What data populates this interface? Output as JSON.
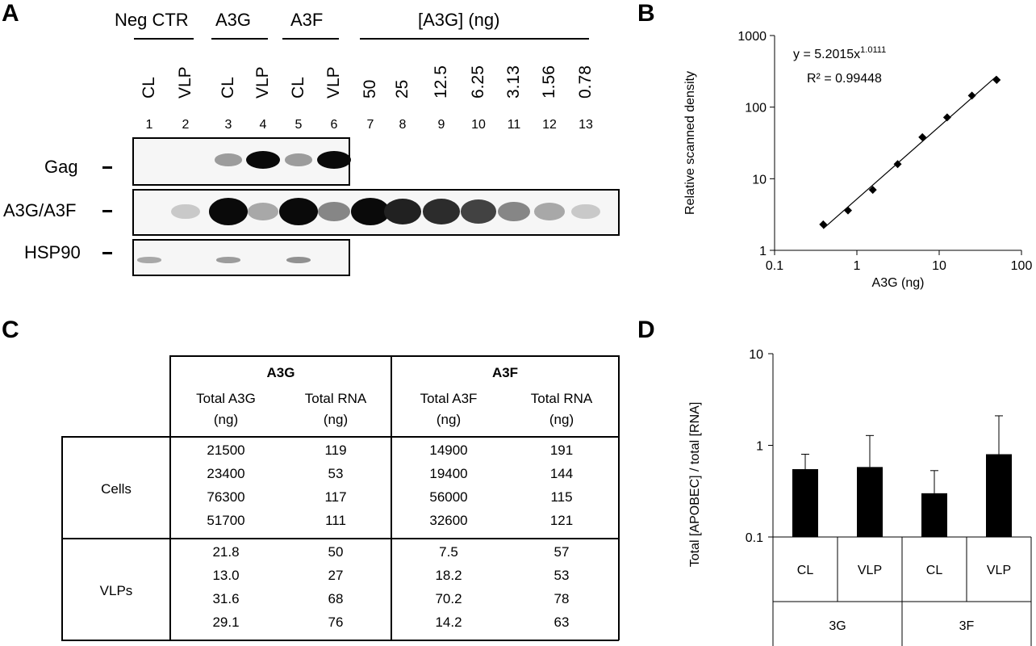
{
  "panels": {
    "a": "A",
    "b": "B",
    "c": "C",
    "d": "D"
  },
  "panel_a": {
    "groups": [
      {
        "label": "Neg CTR"
      },
      {
        "label": "A3G"
      },
      {
        "label": "A3F"
      },
      {
        "label": "[A3G] (ng)"
      }
    ],
    "lane_labels": [
      "CL",
      "VLP",
      "CL",
      "VLP",
      "CL",
      "VLP",
      "50",
      "25",
      "12.5",
      "6.25",
      "3.13",
      "1.56",
      "0.78"
    ],
    "lane_numbers": [
      "1",
      "2",
      "3",
      "4",
      "5",
      "6",
      "7",
      "8",
      "9",
      "10",
      "11",
      "12",
      "13"
    ],
    "blots": [
      {
        "label": "Gag",
        "intensity": [
          0,
          0,
          0.35,
          1.0,
          0.35,
          1.0
        ]
      },
      {
        "label": "A3G/A3F",
        "intensity": [
          0,
          0.15,
          1.0,
          0.3,
          1.0,
          0.45,
          1.0,
          0.9,
          0.85,
          0.75,
          0.45,
          0.3,
          0.15
        ]
      },
      {
        "label": "HSP90",
        "intensity": [
          0.3,
          0,
          0.35,
          0,
          0.4,
          0
        ]
      }
    ]
  },
  "chart_data": [
    {
      "type": "scatter",
      "panel": "B",
      "x": [
        0.39,
        0.78,
        1.56,
        3.13,
        6.25,
        12.5,
        25,
        50
      ],
      "y": [
        2.3,
        3.6,
        7.0,
        16,
        38,
        72,
        145,
        240
      ],
      "trendline": {
        "equation": "y = 5.2015x",
        "exponent": "1.0111",
        "r2": "R² = 0.99448",
        "a": 5.2015,
        "b": 1.0111
      },
      "xlabel": "A3G (ng)",
      "ylabel": "Relative scanned density",
      "xscale": "log",
      "yscale": "log",
      "xlim": [
        0.1,
        100
      ],
      "ylim": [
        1,
        1000
      ],
      "xticks": [
        "0.1",
        "1",
        "10",
        "100"
      ],
      "yticks": [
        "1",
        "10",
        "100",
        "1000"
      ],
      "grid": false
    },
    {
      "type": "bar",
      "panel": "D",
      "categories": [
        "CL",
        "VLP",
        "CL",
        "VLP"
      ],
      "groups": [
        "3G",
        "3F"
      ],
      "values": [
        0.55,
        0.58,
        0.3,
        0.8
      ],
      "errors_upper": [
        0.8,
        1.28,
        0.53,
        2.1
      ],
      "ylabel": "Total [APOBEC] / total [RNA]",
      "yscale": "log",
      "ylim": [
        0.1,
        10
      ],
      "yticks": [
        "0.1",
        "1",
        "10"
      ],
      "color": "#000000"
    }
  ],
  "panel_c": {
    "group_a3g": "A3G",
    "group_a3f": "A3F",
    "col_headers": [
      [
        "Total A3G",
        "(ng)"
      ],
      [
        "Total RNA",
        "(ng)"
      ],
      [
        "Total A3F",
        "(ng)"
      ],
      [
        "Total RNA",
        "(ng)"
      ]
    ],
    "row_groups": [
      {
        "label": "Cells",
        "rows": [
          [
            "21500",
            "119",
            "14900",
            "191"
          ],
          [
            "23400",
            "53",
            "19400",
            "144"
          ],
          [
            "76300",
            "117",
            "56000",
            "115"
          ],
          [
            "51700",
            "111",
            "32600",
            "121"
          ]
        ]
      },
      {
        "label": "VLPs",
        "rows": [
          [
            "21.8",
            "50",
            "7.5",
            "57"
          ],
          [
            "13.0",
            "27",
            "18.2",
            "53"
          ],
          [
            "31.6",
            "68",
            "70.2",
            "78"
          ],
          [
            "29.1",
            "76",
            "14.2",
            "63"
          ]
        ]
      }
    ]
  }
}
